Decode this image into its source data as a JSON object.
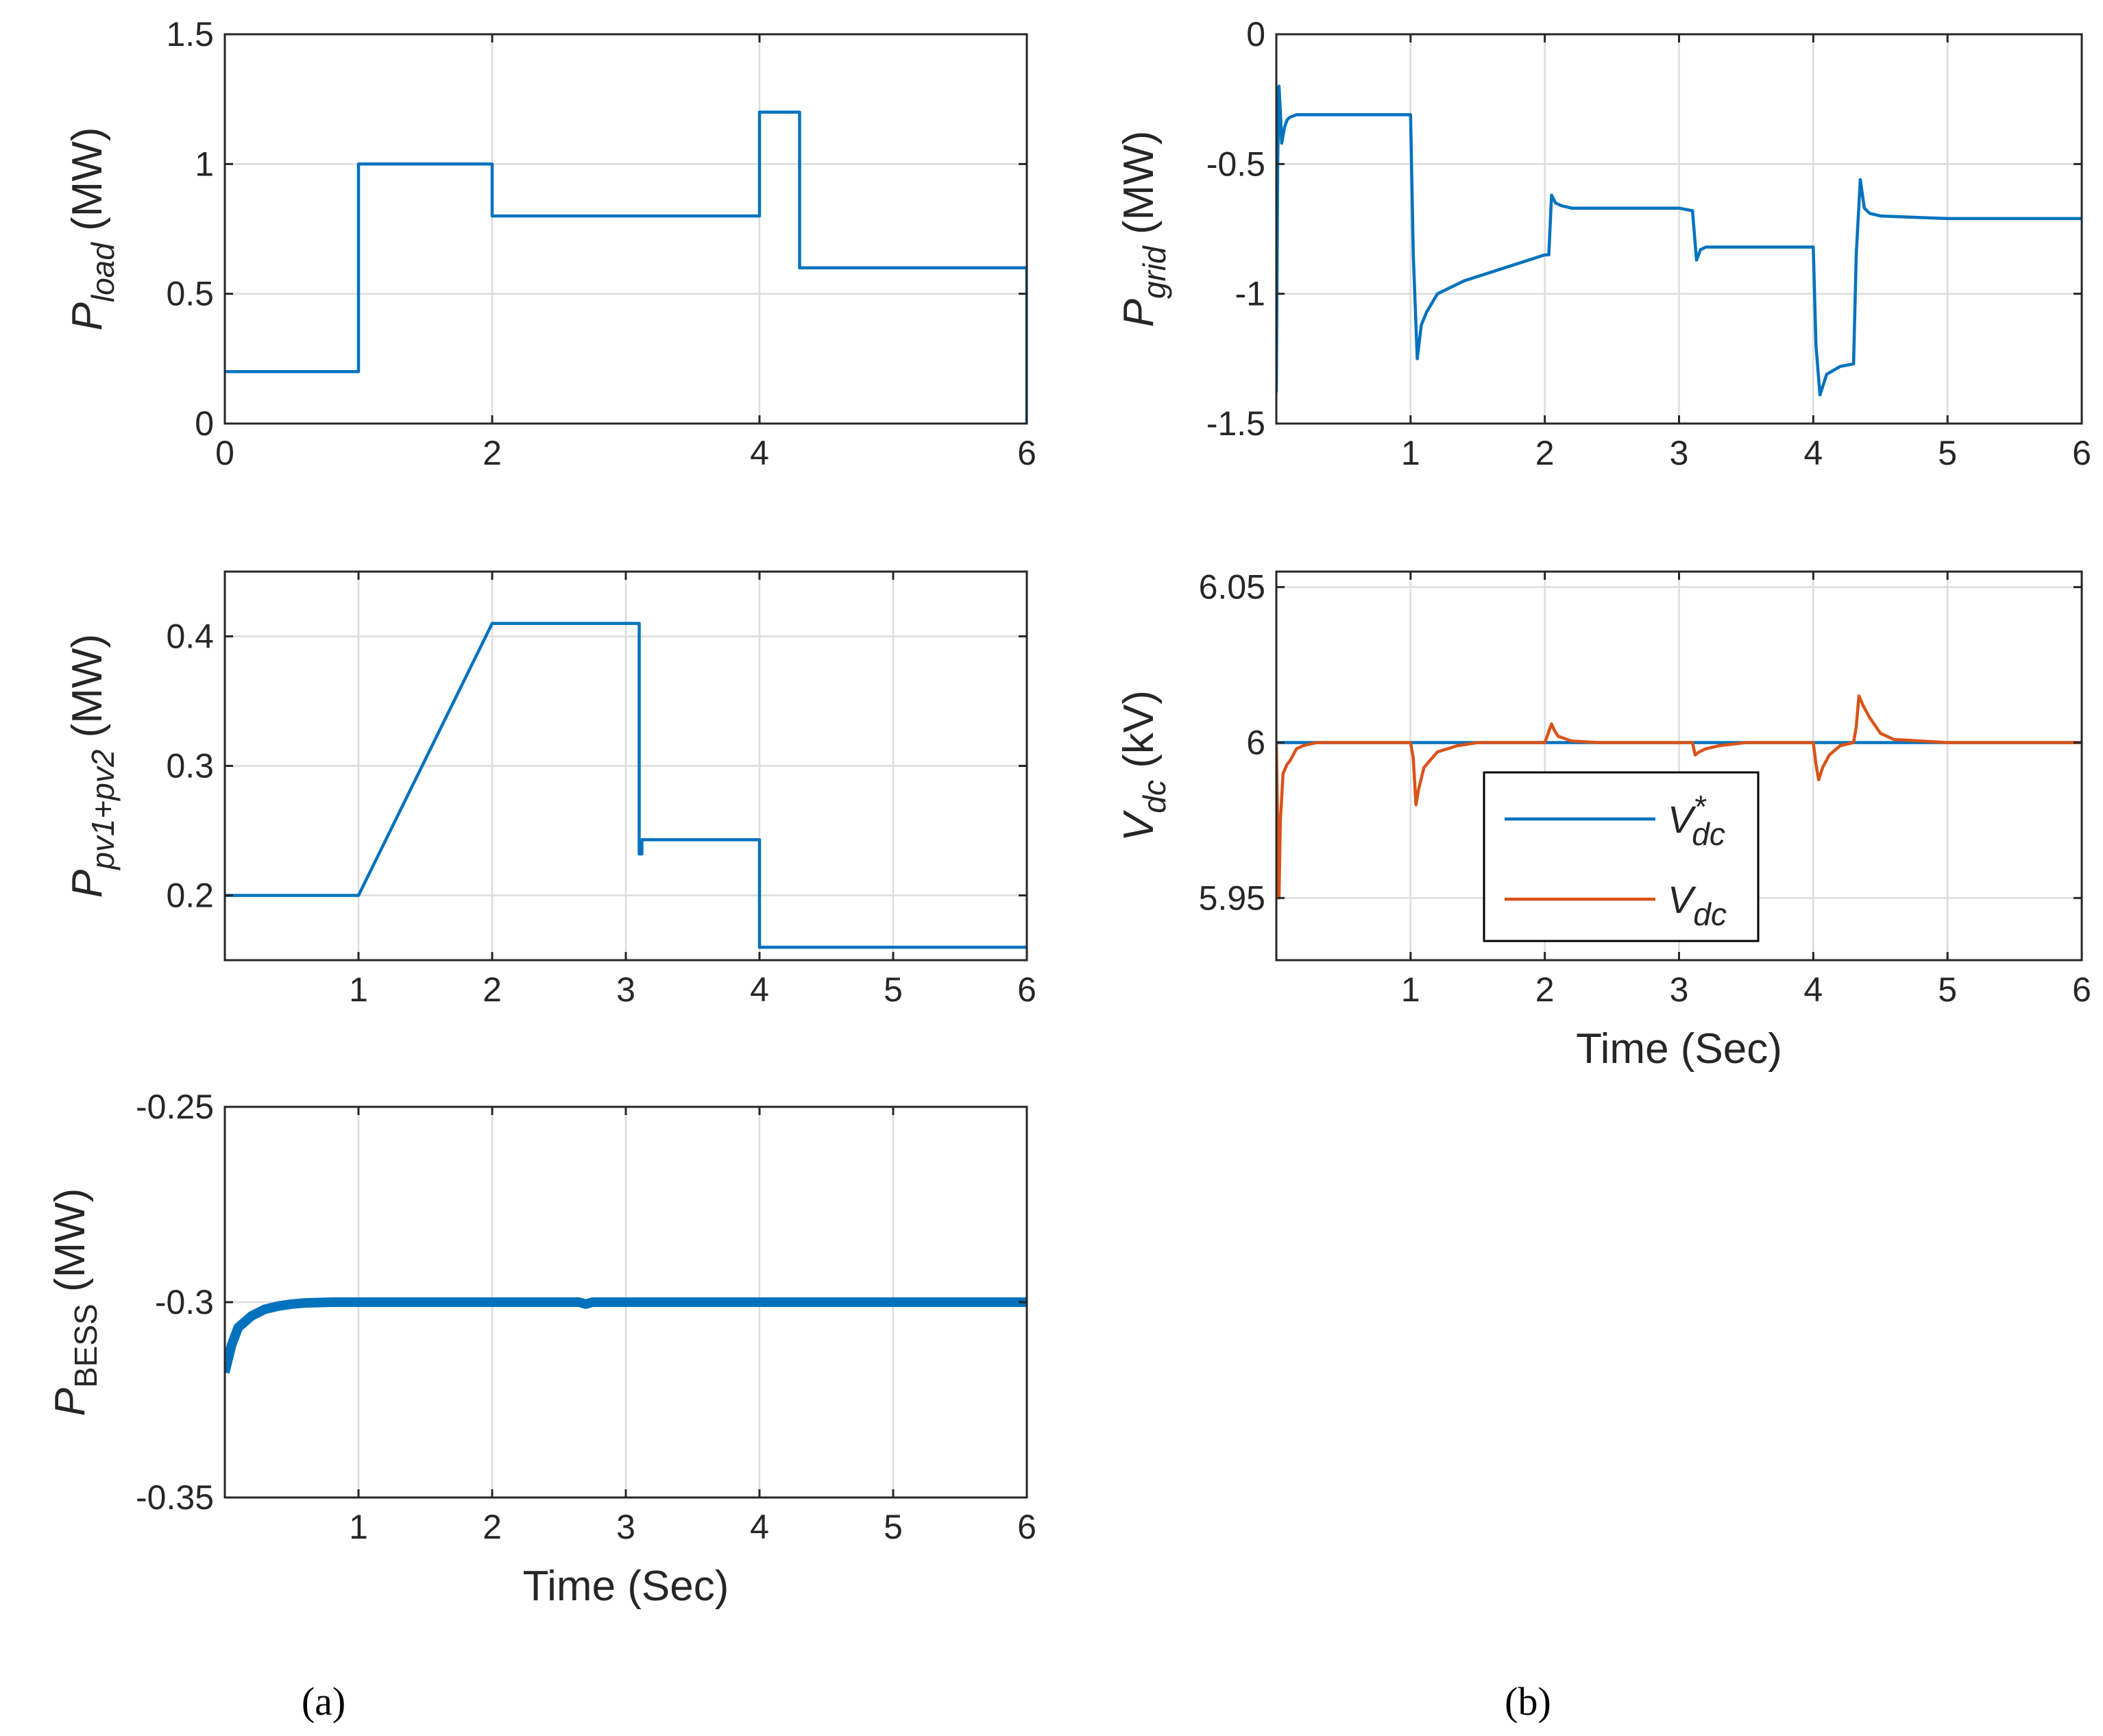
{
  "colors": {
    "blue": "#0072bd",
    "orange": "#d95319",
    "axis": "#262626",
    "grid": "#dcdcdc"
  },
  "panel_labels": {
    "a": "(a)",
    "b": "(b)"
  },
  "chart_data": [
    {
      "id": "pload",
      "type": "line",
      "ylabel": {
        "main": "P",
        "sub": "load",
        "sub_italic": true,
        "units": " (MW)"
      },
      "xlabel": "",
      "xlim": [
        0,
        6
      ],
      "ylim": [
        0,
        1.5
      ],
      "xticks": [
        0,
        2,
        4,
        6
      ],
      "xtick_labels": [
        "0",
        "2",
        "4",
        "6"
      ],
      "yticks": [
        0,
        0.5,
        1,
        1.5
      ],
      "ytick_labels": [
        "0",
        "0.5",
        "1",
        "1.5"
      ],
      "grid": true,
      "series": [
        {
          "name": "P_load",
          "color": "#0072bd",
          "x": [
            0,
            1,
            1,
            2,
            2,
            4,
            4,
            4.3,
            4.3,
            6,
            6
          ],
          "y": [
            0.2,
            0.2,
            1.0,
            1.0,
            0.8,
            0.8,
            1.2,
            1.2,
            0.6,
            0.6,
            0
          ]
        }
      ]
    },
    {
      "id": "ppv",
      "type": "line",
      "ylabel": {
        "main": "P",
        "sub": "pv1+pv2",
        "sub_italic": true,
        "units": " (MW)"
      },
      "xlabel": "",
      "xlim": [
        0,
        6
      ],
      "ylim": [
        0.15,
        0.45
      ],
      "xticks": [
        1,
        2,
        3,
        4,
        5,
        6
      ],
      "xtick_labels": [
        "1",
        "2",
        "3",
        "4",
        "5",
        "6"
      ],
      "yticks": [
        0.2,
        0.3,
        0.4
      ],
      "ytick_labels": [
        "0.2",
        "0.3",
        "0.4"
      ],
      "grid": true,
      "series": [
        {
          "name": "P_pv1+pv2",
          "color": "#0072bd",
          "x": [
            0,
            1,
            2,
            3.1,
            3.1,
            3.12,
            3.12,
            4,
            4,
            6
          ],
          "y": [
            0.2,
            0.2,
            0.41,
            0.41,
            0.232,
            0.232,
            0.243,
            0.243,
            0.16,
            0.16
          ]
        }
      ]
    },
    {
      "id": "pbess",
      "type": "line",
      "ylabel": {
        "main": "P",
        "sub": "BESS",
        "sub_italic": false,
        "units": " (MW)"
      },
      "xlabel": "Time (Sec)",
      "xlim": [
        0,
        6
      ],
      "ylim": [
        -0.35,
        -0.25
      ],
      "xticks": [
        1,
        2,
        3,
        4,
        5,
        6
      ],
      "xtick_labels": [
        "1",
        "2",
        "3",
        "4",
        "5",
        "6"
      ],
      "yticks": [
        -0.35,
        -0.3,
        -0.25
      ],
      "ytick_labels": [
        "-0.35",
        "-0.3",
        "-0.25"
      ],
      "grid": true,
      "series": [
        {
          "name": "P_BESS",
          "color": "#0072bd",
          "thick": true,
          "x": [
            0,
            0.05,
            0.1,
            0.2,
            0.3,
            0.4,
            0.5,
            0.6,
            0.8,
            1.0,
            2.0,
            2.65,
            2.7,
            2.75,
            3.0,
            4.0,
            5.0,
            6.0
          ],
          "y": [
            -0.318,
            -0.311,
            -0.3065,
            -0.3035,
            -0.3018,
            -0.301,
            -0.3005,
            -0.3002,
            -0.3,
            -0.3,
            -0.3,
            -0.3,
            -0.3005,
            -0.3,
            -0.3,
            -0.3,
            -0.3,
            -0.3
          ]
        }
      ]
    },
    {
      "id": "pgrid",
      "type": "line",
      "ylabel": {
        "main": "P",
        "sub": "grid",
        "sub_italic": true,
        "units": " (MW)"
      },
      "xlabel": "",
      "xlim": [
        0,
        6
      ],
      "ylim": [
        -1.5,
        0
      ],
      "xticks": [
        1,
        2,
        3,
        4,
        5,
        6
      ],
      "xtick_labels": [
        "1",
        "2",
        "3",
        "4",
        "5",
        "6"
      ],
      "yticks": [
        -1.5,
        -1,
        -0.5,
        0
      ],
      "ytick_labels": [
        "-1.5",
        "-1",
        "-0.5",
        "0"
      ],
      "grid": true,
      "series": [
        {
          "name": "P_grid",
          "color": "#0072bd",
          "x": [
            0,
            0.01,
            0.02,
            0.03,
            0.04,
            0.06,
            0.08,
            0.1,
            0.15,
            0.3,
            1.0,
            1.02,
            1.05,
            1.08,
            1.12,
            1.2,
            1.4,
            1.7,
            2.0,
            2.03,
            2.05,
            2.08,
            2.12,
            2.2,
            2.5,
            3.0,
            3.1,
            3.13,
            3.16,
            3.2,
            3.4,
            4.0,
            4.02,
            4.05,
            4.1,
            4.2,
            4.3,
            4.32,
            4.35,
            4.38,
            4.42,
            4.5,
            5.0,
            6.0
          ],
          "y": [
            -1.38,
            -0.5,
            -0.2,
            -0.3,
            -0.42,
            -0.36,
            -0.33,
            -0.32,
            -0.31,
            -0.31,
            -0.31,
            -0.85,
            -1.25,
            -1.12,
            -1.07,
            -1.0,
            -0.95,
            -0.9,
            -0.85,
            -0.85,
            -0.62,
            -0.65,
            -0.66,
            -0.67,
            -0.67,
            -0.67,
            -0.68,
            -0.87,
            -0.83,
            -0.82,
            -0.82,
            -0.82,
            -1.2,
            -1.39,
            -1.31,
            -1.28,
            -1.27,
            -0.85,
            -0.56,
            -0.67,
            -0.69,
            -0.7,
            -0.71,
            -0.71
          ]
        }
      ]
    },
    {
      "id": "vdc",
      "type": "line",
      "ylabel": {
        "main": "V",
        "sub": "dc",
        "sub_italic": true,
        "units": " (kV)"
      },
      "xlabel": "Time (Sec)",
      "xlim": [
        0,
        6
      ],
      "ylim": [
        5.93,
        6.055
      ],
      "xticks": [
        1,
        2,
        3,
        4,
        5,
        6
      ],
      "xtick_labels": [
        "1",
        "2",
        "3",
        "4",
        "5",
        "6"
      ],
      "yticks": [
        5.95,
        6,
        6.05
      ],
      "ytick_labels": [
        "5.95",
        "6",
        "6.05"
      ],
      "grid": true,
      "legend": {
        "placement": "center",
        "entries": [
          {
            "main": "V",
            "sup": "*",
            "sub": "dc",
            "color": "#0072bd"
          },
          {
            "main": "V",
            "sup": "",
            "sub": "dc",
            "color": "#d95319"
          }
        ]
      },
      "series": [
        {
          "name": "V*dc",
          "color": "#0072bd",
          "x": [
            0,
            6
          ],
          "y": [
            6.0,
            6.0
          ]
        },
        {
          "name": "Vdc",
          "color": "#d95319",
          "x": [
            0,
            0.01,
            0.02,
            0.03,
            0.05,
            0.08,
            0.1,
            0.15,
            0.2,
            0.3,
            0.5,
            1.0,
            1.02,
            1.04,
            1.06,
            1.1,
            1.2,
            1.35,
            1.5,
            2.0,
            2.05,
            2.07,
            2.1,
            2.2,
            2.4,
            3.0,
            3.1,
            3.12,
            3.15,
            3.2,
            3.3,
            3.5,
            4.0,
            4.02,
            4.04,
            4.07,
            4.12,
            4.2,
            4.3,
            4.32,
            4.34,
            4.37,
            4.42,
            4.5,
            4.6,
            5.0,
            6.0
          ],
          "y": [
            6.0,
            5.972,
            5.95,
            5.975,
            5.99,
            5.993,
            5.994,
            5.998,
            5.999,
            6.0,
            6.0,
            6.0,
            5.995,
            5.98,
            5.985,
            5.992,
            5.997,
            5.999,
            6.0,
            6.0,
            6.006,
            6.004,
            6.002,
            6.0005,
            6.0,
            6.0,
            6.0,
            5.996,
            5.997,
            5.998,
            5.999,
            6.0,
            6.0,
            5.993,
            5.988,
            5.992,
            5.996,
            5.999,
            6.0,
            6.005,
            6.015,
            6.012,
            6.008,
            6.003,
            6.001,
            6.0,
            6.0
          ]
        }
      ]
    }
  ]
}
